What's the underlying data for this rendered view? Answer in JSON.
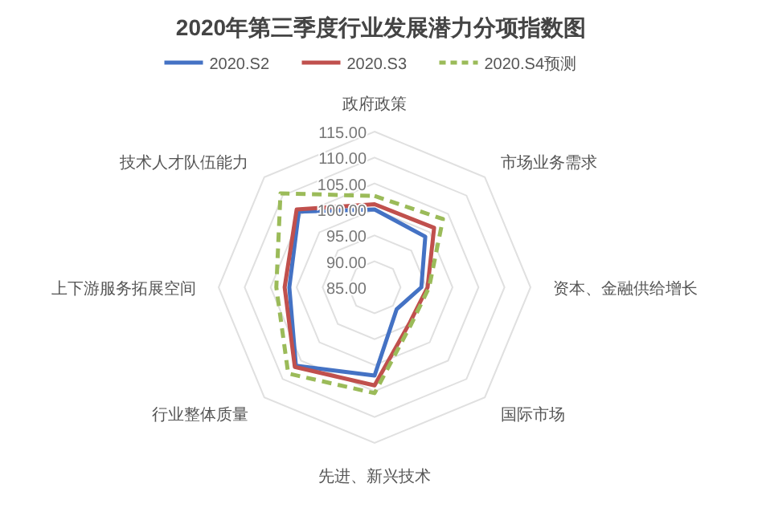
{
  "chart_data": {
    "type": "radar",
    "title": "2020年第三季度行业发展潜力分项指数图",
    "categories": [
      "政府政策",
      "市场业务需求",
      "资本、金融供给增长",
      "国际市场",
      "先进、新兴技术",
      "行业整体质量",
      "上下游服务拓展空间",
      "技术人才队伍能力"
    ],
    "series": [
      {
        "name": "2020.S2",
        "color": "#4472c4",
        "line_style": "solid",
        "values": [
          100,
          98.8,
          94,
          91,
          102,
          106.4,
          101.4,
          105.6
        ]
      },
      {
        "name": "2020.S3",
        "color": "#c0504d",
        "line_style": "solid",
        "values": [
          101,
          101.2,
          95.2,
          94.6,
          103.9,
          106.7,
          102.3,
          106.2
        ]
      },
      {
        "name": "2020.S4预测",
        "color": "#9bbb59",
        "line_style": "dashed",
        "values": [
          102.6,
          103.6,
          95.5,
          95,
          105.4,
          108.5,
          103.9,
          110.6
        ]
      }
    ],
    "ylim": [
      85,
      115
    ],
    "yticks": [
      {
        "value": 85,
        "label": "85.00"
      },
      {
        "value": 90,
        "label": "90.00"
      },
      {
        "value": 95,
        "label": "95.00"
      },
      {
        "value": 100,
        "label": "100.00"
      },
      {
        "value": 105,
        "label": "105.00"
      },
      {
        "value": 110,
        "label": "110.00"
      },
      {
        "value": 115,
        "label": "115.00"
      }
    ],
    "grid": true,
    "legend": "top"
  }
}
